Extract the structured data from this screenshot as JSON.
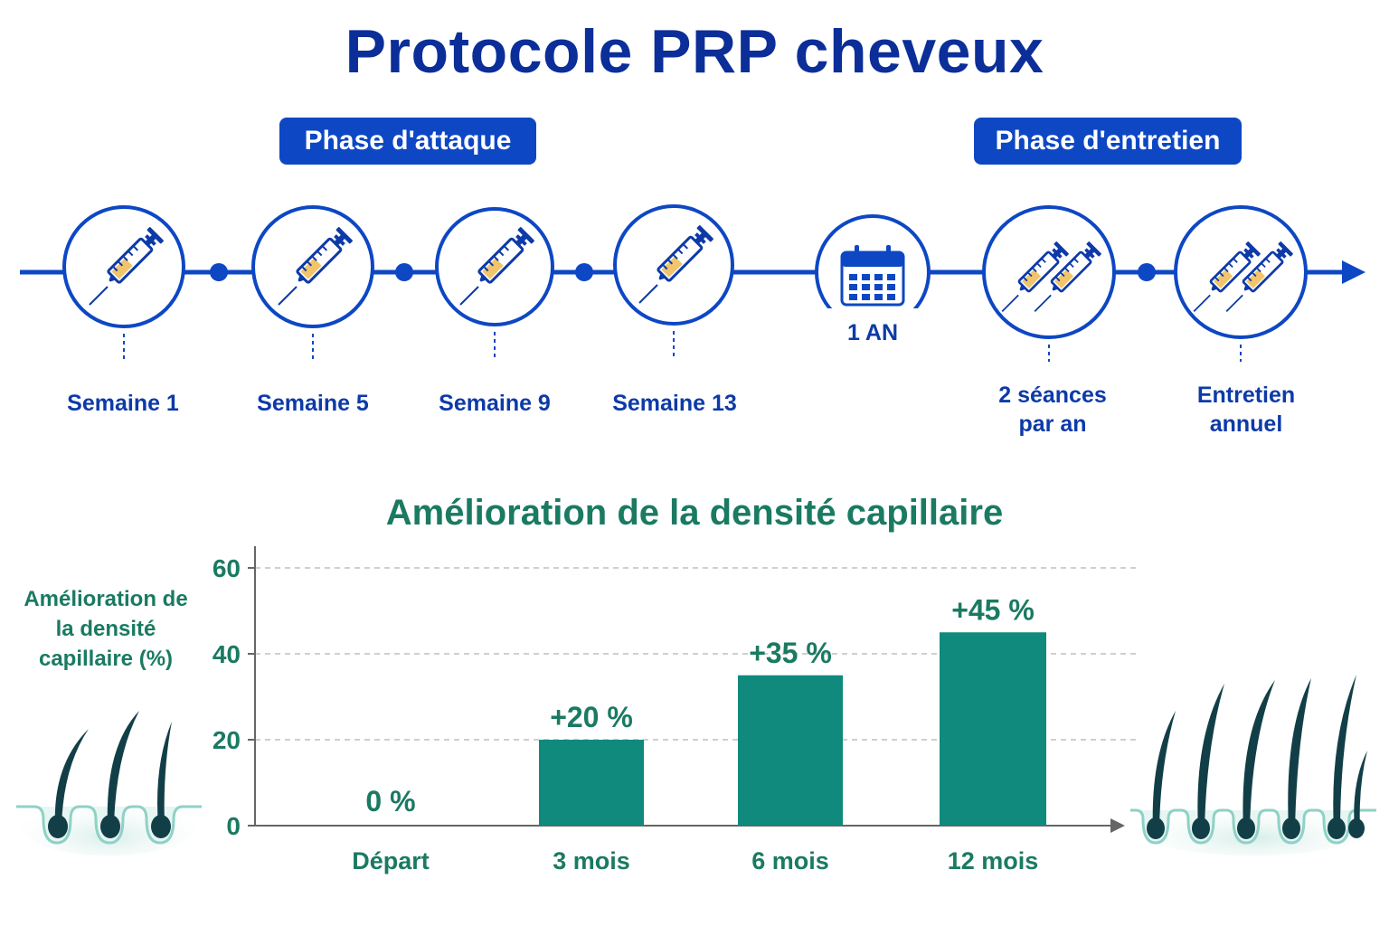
{
  "header": {
    "title": "Protocole PRP cheveux"
  },
  "phases": {
    "attack_label": "Phase d'attaque",
    "maintenance_label": "Phase d'entretien"
  },
  "timeline": {
    "calendar_label": "1 AN",
    "steps": [
      {
        "label": "Semaine 1",
        "icon": "syringe-icon"
      },
      {
        "label": "Semaine 5",
        "icon": "syringe-icon"
      },
      {
        "label": "Semaine 9",
        "icon": "syringe-icon"
      },
      {
        "label": "Semaine 13",
        "icon": "syringe-icon"
      },
      {
        "label": "2 séances par an",
        "icon": "double-syringe-icon"
      },
      {
        "label": "Entretien annuel",
        "icon": "double-syringe-icon"
      }
    ]
  },
  "colors": {
    "blue_dark": "#0b2e99",
    "blue": "#0d47c4",
    "teal": "#0f8a7c",
    "teal_text": "#1a7a62",
    "syringe_fill": "#f2c56b"
  },
  "chart_data": {
    "type": "bar",
    "title": "Amélioration de la densité capillaire",
    "ylabel": "Amélioration de la densité capillaire (%)",
    "xlabel": "",
    "categories": [
      "Départ",
      "3 mois",
      "6 mois",
      "12 mois"
    ],
    "values": [
      0,
      20,
      35,
      45
    ],
    "data_labels": [
      "0 %",
      "+20 %",
      "+35 %",
      "+45 %"
    ],
    "yticks": [
      0,
      20,
      40,
      60
    ],
    "ylim": [
      0,
      60
    ],
    "grid": true
  }
}
